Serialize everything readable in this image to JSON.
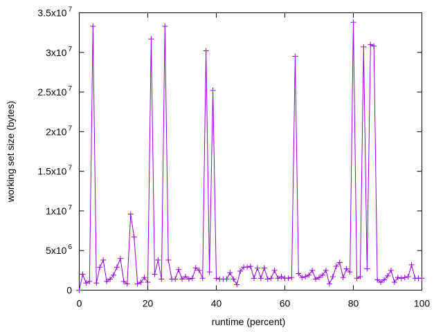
{
  "chart_data": {
    "type": "line",
    "xlabel": "runtime (percent)",
    "ylabel": "working set size (bytes)",
    "xlim": [
      0,
      100
    ],
    "ylim": [
      0,
      35000000
    ],
    "grid": false,
    "legend": "none",
    "color": "#9400d3",
    "marker": "plus",
    "x_ticks": [
      {
        "value": 0,
        "label": "0"
      },
      {
        "value": 20,
        "label": "20"
      },
      {
        "value": 40,
        "label": "40"
      },
      {
        "value": 60,
        "label": "60"
      },
      {
        "value": 80,
        "label": "80"
      },
      {
        "value": 100,
        "label": "100"
      }
    ],
    "y_ticks": [
      {
        "value": 0,
        "mantissa": "0",
        "exponent": ""
      },
      {
        "value": 5000000,
        "mantissa": "5x10",
        "exponent": "6"
      },
      {
        "value": 10000000,
        "mantissa": "1x10",
        "exponent": "7"
      },
      {
        "value": 15000000,
        "mantissa": "1.5x10",
        "exponent": "7"
      },
      {
        "value": 20000000,
        "mantissa": "2x10",
        "exponent": "7"
      },
      {
        "value": 25000000,
        "mantissa": "2.5x10",
        "exponent": "7"
      },
      {
        "value": 30000000,
        "mantissa": "3x10",
        "exponent": "7"
      },
      {
        "value": 35000000,
        "mantissa": "3.5x10",
        "exponent": "7"
      }
    ],
    "series": [
      {
        "x": [
          0,
          1,
          2,
          3,
          4,
          5,
          6,
          7,
          8,
          9,
          10,
          11,
          12,
          13,
          14,
          15,
          16,
          17,
          18,
          19,
          20,
          21,
          22,
          23,
          24,
          25,
          26,
          27,
          28,
          29,
          30,
          31,
          32,
          33,
          34,
          35,
          36,
          37,
          38,
          39,
          40,
          41,
          42,
          43,
          44,
          45,
          46,
          47,
          48,
          49,
          50,
          51,
          52,
          53,
          54,
          55,
          56,
          57,
          58,
          59,
          60,
          61,
          62,
          63,
          64,
          65,
          66,
          67,
          68,
          69,
          70,
          71,
          72,
          73,
          74,
          75,
          76,
          77,
          78,
          79,
          80,
          81,
          82,
          83,
          84,
          85,
          86,
          87,
          88,
          89,
          90,
          91,
          92,
          93,
          94,
          95,
          96,
          97,
          98,
          99,
          100
        ],
        "y": [
          0,
          2000000,
          900000,
          1100000,
          33300000,
          900000,
          2900000,
          3800000,
          1100000,
          1400000,
          1900000,
          2900000,
          4000000,
          1100000,
          800000,
          9600000,
          6700000,
          800000,
          1000000,
          1600000,
          1000000,
          31700000,
          2000000,
          3800000,
          1400000,
          33300000,
          3800000,
          1400000,
          1400000,
          2600000,
          1400000,
          1700000,
          1400000,
          1500000,
          2800000,
          2500000,
          1500000,
          30200000,
          2300000,
          25200000,
          1500000,
          1400000,
          1400000,
          1400000,
          2200000,
          1400000,
          700000,
          2400000,
          2900000,
          2900000,
          3000000,
          1500000,
          2800000,
          1500000,
          2800000,
          1400000,
          1500000,
          2500000,
          1500000,
          1700000,
          1500000,
          1500000,
          1600000,
          29500000,
          2100000,
          1600000,
          1700000,
          1900000,
          2500000,
          1400000,
          1600000,
          1900000,
          2500000,
          800000,
          1700000,
          3000000,
          3500000,
          1600000,
          2700000,
          2300000,
          33800000,
          1500000,
          1700000,
          30700000,
          2700000,
          31000000,
          30800000,
          1300000,
          1000000,
          1300000,
          1800000,
          2500000,
          1000000,
          1600000,
          1500000,
          1600000,
          1700000,
          3200000,
          1500000,
          1500000,
          1500000
        ]
      }
    ]
  }
}
